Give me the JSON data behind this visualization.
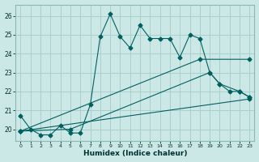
{
  "xlabel": "Humidex (Indice chaleur)",
  "background_color": "#cce8e6",
  "grid_color": "#aacfcc",
  "line_color": "#006060",
  "xlim": [
    -0.5,
    23.5
  ],
  "ylim": [
    19.4,
    26.6
  ],
  "yticks": [
    20,
    21,
    22,
    23,
    24,
    25,
    26
  ],
  "xticks": [
    0,
    1,
    2,
    3,
    4,
    5,
    6,
    7,
    8,
    9,
    10,
    11,
    12,
    13,
    14,
    15,
    16,
    17,
    18,
    19,
    20,
    21,
    22,
    23
  ],
  "series1_x": [
    0,
    1,
    2,
    3,
    4,
    5,
    6,
    7,
    8,
    9,
    10,
    11,
    12,
    13,
    14,
    15,
    16,
    17,
    18,
    19,
    20,
    21,
    22,
    23
  ],
  "series1_y": [
    20.7,
    20.0,
    19.7,
    19.7,
    20.2,
    19.8,
    19.8,
    21.3,
    24.9,
    26.1,
    24.9,
    24.3,
    25.5,
    24.8,
    24.8,
    24.8,
    23.8,
    25.0,
    24.8,
    23.0,
    22.4,
    22.0,
    22.0,
    21.7
  ],
  "series2_x": [
    0,
    23
  ],
  "series2_y": [
    19.9,
    21.6
  ],
  "series3_x": [
    0,
    5,
    19,
    20,
    22,
    23
  ],
  "series3_y": [
    19.9,
    20.0,
    23.0,
    22.4,
    22.0,
    21.7
  ],
  "series4_x": [
    0,
    18,
    23
  ],
  "series4_y": [
    19.9,
    23.7,
    23.7
  ]
}
